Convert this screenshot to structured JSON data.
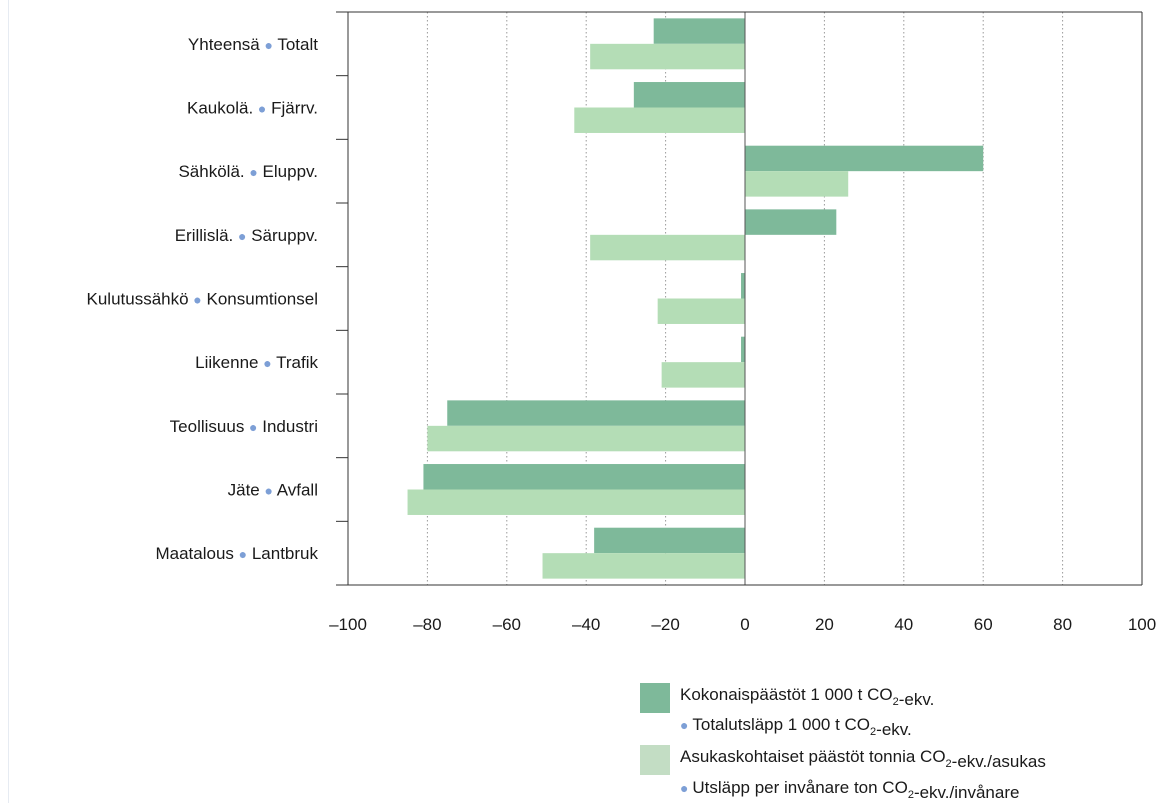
{
  "chart_data": {
    "type": "bar",
    "orientation": "horizontal",
    "categories_fi": [
      "Yhteensä",
      "Kaukolä.",
      "Sähkölä.",
      "Erillislä.",
      "Kulutussähkö",
      "Liikenne",
      "Teollisuus",
      "Jäte",
      "Maatalous"
    ],
    "categories_sv": [
      "Totalt",
      "Fjärrv.",
      "Eluppv.",
      "Säruppv.",
      "Konsumtionsel",
      "Trafik",
      "Industri",
      "Avfall",
      "Lantbruk"
    ],
    "series": [
      {
        "name": "Kokonaispäästöt 1 000 t CO2-ekv. / Totalutsläpp 1 000 t CO2-ekv.",
        "color": "#7eb99a",
        "values": [
          -23,
          -28,
          60,
          23,
          -1,
          -1,
          -75,
          -81,
          -38
        ]
      },
      {
        "name": "Asukaskohtaiset päästöt tonnia CO2-ekv./asukas / Utsläpp per invånare ton CO2-ekv./invånare",
        "color": "#b4ddb6",
        "values": [
          -39,
          -43,
          26,
          -39,
          -22,
          -21,
          -80,
          -85,
          -51
        ]
      }
    ],
    "xlim": [
      -100,
      100
    ],
    "xticks": [
      "–100",
      "–80",
      "–60",
      "–40",
      "–20",
      "0",
      "20",
      "40",
      "60",
      "80",
      "100"
    ],
    "grid": "vertical dotted",
    "legend": {
      "placement": "bottom-right",
      "items": [
        {
          "color": "#7eb99a",
          "fi_pre": "Kokonaispäästöt 1 000 t CO",
          "fi_sub": "2",
          "fi_post": "-ekv.",
          "sv_pre": "Totalutsläpp 1 000 t CO",
          "sv_sub": "2",
          "sv_post": "-ekv."
        },
        {
          "color": "#c3ddc4",
          "fi_pre": "Asukaskohtaiset päästöt tonnia CO",
          "fi_sub": "2",
          "fi_post": "-ekv./asukas",
          "sv_pre": "Utsläpp per invånare ton CO",
          "sv_sub": "2",
          "sv_post": "-ekv./invånare"
        }
      ]
    },
    "colors": {
      "dot": "#7d9fd6",
      "axis": "#333333",
      "grid": "#9a9a9a"
    }
  }
}
